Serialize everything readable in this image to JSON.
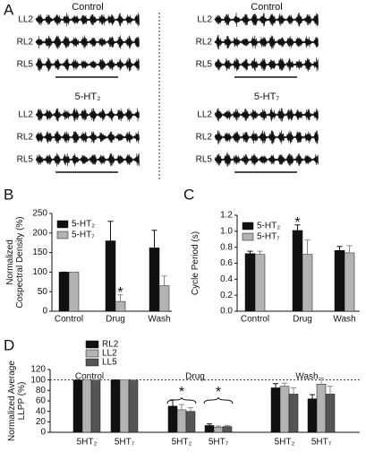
{
  "panel_a": {
    "panel_label": "A",
    "groups": [
      {
        "title": "Control",
        "traces": [
          "LL2",
          "RL2",
          "RL5"
        ]
      },
      {
        "title": "Control",
        "traces": [
          "LL2",
          "RL2",
          "RL5"
        ]
      },
      {
        "title": "5-HT₂",
        "traces": [
          "LL2",
          "RL2",
          "RL5"
        ]
      },
      {
        "title": "5-HT₇",
        "traces": [
          "LL2",
          "RL2",
          "RL5"
        ]
      }
    ]
  },
  "chart_data": [
    {
      "type": "bar",
      "panel_label": "B",
      "ylabel": [
        "Normalized",
        "Cospectral Density (%)"
      ],
      "categories": [
        "Control",
        "Drug",
        "Wash"
      ],
      "series": [
        {
          "name": "5-HT₂",
          "color": "#111111",
          "values": [
            100,
            180,
            162
          ],
          "errors": [
            0,
            50,
            45
          ]
        },
        {
          "name": "5-HT₇",
          "color": "#b3b3b3",
          "values": [
            100,
            25,
            65
          ],
          "errors": [
            0,
            17,
            25
          ]
        }
      ],
      "ylim": [
        0,
        250
      ],
      "yticks": [
        0,
        50,
        100,
        150,
        200,
        250
      ],
      "annotation": "*"
    },
    {
      "type": "bar",
      "panel_label": "C",
      "ylabel": [
        "Cycle Period (s)"
      ],
      "categories": [
        "Control",
        "Drug",
        "Wash"
      ],
      "series": [
        {
          "name": "5-HT₂",
          "color": "#111111",
          "values": [
            0.72,
            1.01,
            0.76
          ],
          "errors": [
            0.03,
            0.07,
            0.05
          ]
        },
        {
          "name": "5-HT₇",
          "color": "#b3b3b3",
          "values": [
            0.71,
            0.71,
            0.73
          ],
          "errors": [
            0.04,
            0.18,
            0.09
          ]
        }
      ],
      "ylim": [
        0,
        1.2
      ],
      "yticks": [
        {
          "value": 0,
          "label": "0.0"
        },
        0.2,
        0.4,
        0.6,
        0.8,
        {
          "value": 1,
          "label": "1.0"
        },
        1.2
      ],
      "annotation": "*"
    },
    {
      "type": "bar",
      "panel_label": "D",
      "ylabel": [
        "Normalized Average",
        "LLPP (%)"
      ],
      "groups": [
        {
          "name": "Control",
          "categories": [
            "5HT₂",
            "5HT₇"
          ]
        },
        {
          "name": "Drug",
          "categories": [
            "5HT₂",
            "5HT₇"
          ]
        },
        {
          "name": "Wash",
          "categories": [
            "5HT₂",
            "5HT₇"
          ]
        }
      ],
      "series": [
        {
          "name": "RL2",
          "color": "#111111",
          "values": [
            100,
            100,
            50,
            13,
            85,
            64
          ],
          "errors": [
            0,
            0,
            12,
            3,
            8,
            8
          ]
        },
        {
          "name": "LL2",
          "color": "#b3b3b3",
          "values": [
            100,
            100,
            43,
            10,
            88,
            92
          ],
          "errors": [
            0,
            0,
            10,
            2,
            6,
            12
          ]
        },
        {
          "name": "LL5",
          "color": "#555555",
          "values": [
            100,
            100,
            40,
            11,
            73,
            73
          ],
          "errors": [
            0,
            0,
            7,
            2,
            12,
            15
          ]
        }
      ],
      "ylim": [
        0,
        120
      ],
      "yticks": [
        0,
        20,
        40,
        60,
        80,
        100,
        120
      ],
      "reference_line": 100,
      "annotations": [
        "*",
        "*"
      ]
    }
  ]
}
